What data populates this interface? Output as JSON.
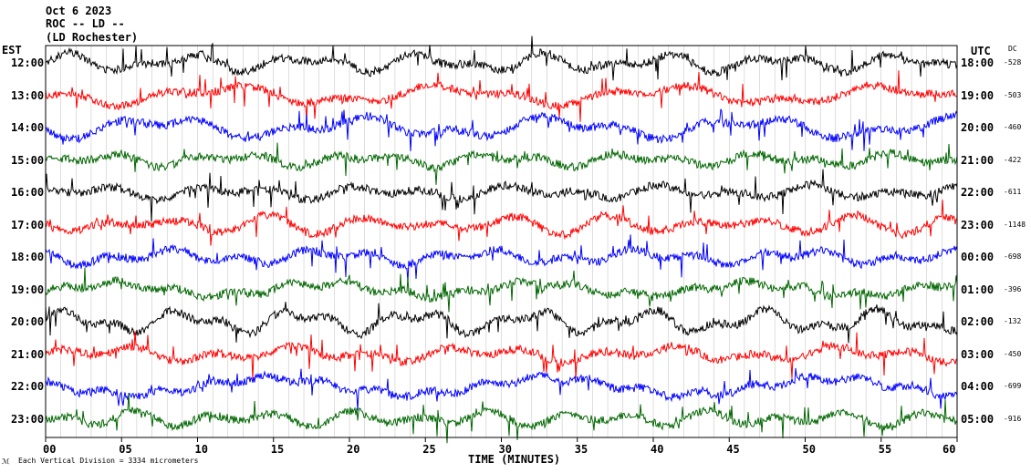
{
  "header": {
    "line1": "Oct 6 2023",
    "line2": "ROC -- LD --",
    "line3": "(LD Rochester)"
  },
  "left_axis_label": "EST",
  "right_axis_label": "UTC",
  "dc_label": "DC",
  "footer": {
    "scale_note": "Each Vertical Division = 3334 micrometers",
    "logo_text": "ℳ"
  },
  "colors": {
    "black": "#000000",
    "red": "#ff0000",
    "blue": "#0000ff",
    "green": "#006600"
  },
  "chart_data": {
    "type": "line",
    "xlabel": "TIME (MINUTES)",
    "xlim": [
      0,
      60
    ],
    "x_ticks": [
      "00",
      "05",
      "10",
      "15",
      "20",
      "25",
      "30",
      "35",
      "40",
      "45",
      "50",
      "55",
      "60"
    ],
    "traces": [
      {
        "est": "12:00",
        "utc": "18:00",
        "dc": "-528",
        "color": "black"
      },
      {
        "est": "13:00",
        "utc": "19:00",
        "dc": "-503",
        "color": "red"
      },
      {
        "est": "14:00",
        "utc": "20:00",
        "dc": "-460",
        "color": "blue"
      },
      {
        "est": "15:00",
        "utc": "21:00",
        "dc": "-422",
        "color": "green"
      },
      {
        "est": "16:00",
        "utc": "22:00",
        "dc": "-611",
        "color": "black"
      },
      {
        "est": "17:00",
        "utc": "23:00",
        "dc": "-1148",
        "color": "red"
      },
      {
        "est": "18:00",
        "utc": "00:00",
        "dc": "-698",
        "color": "blue"
      },
      {
        "est": "19:00",
        "utc": "01:00",
        "dc": "-396",
        "color": "green"
      },
      {
        "est": "20:00",
        "utc": "02:00",
        "dc": "-132",
        "color": "black"
      },
      {
        "est": "21:00",
        "utc": "03:00",
        "dc": "-450",
        "color": "red"
      },
      {
        "est": "22:00",
        "utc": "04:00",
        "dc": "-699",
        "color": "blue"
      },
      {
        "est": "23:00",
        "utc": "05:00",
        "dc": "-916",
        "color": "green"
      }
    ]
  }
}
